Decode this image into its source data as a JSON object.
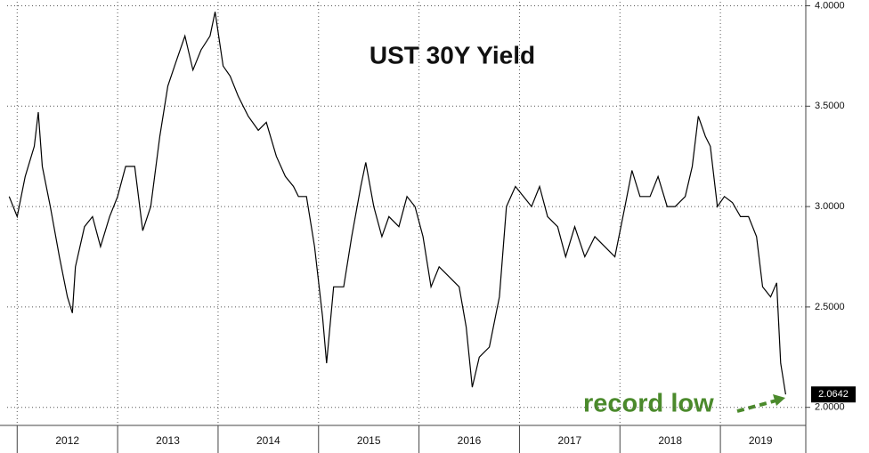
{
  "chart_data": {
    "type": "line",
    "title": "UST 30Y Yield",
    "annotation": "record low",
    "color": "#000000",
    "grid": true,
    "x": [
      2011.92,
      2012.0,
      2012.08,
      2012.17,
      2012.21,
      2012.25,
      2012.33,
      2012.42,
      2012.5,
      2012.55,
      2012.58,
      2012.67,
      2012.75,
      2012.83,
      2012.92,
      2013.0,
      2013.08,
      2013.17,
      2013.25,
      2013.33,
      2013.42,
      2013.5,
      2013.58,
      2013.67,
      2013.75,
      2013.83,
      2013.92,
      2013.97,
      2014.05,
      2014.12,
      2014.2,
      2014.3,
      2014.4,
      2014.48,
      2014.58,
      2014.67,
      2014.75,
      2014.8,
      2014.88,
      2014.96,
      2015.04,
      2015.08,
      2015.15,
      2015.25,
      2015.33,
      2015.42,
      2015.47,
      2015.55,
      2015.63,
      2015.7,
      2015.8,
      2015.88,
      2015.96,
      2016.04,
      2016.12,
      2016.2,
      2016.3,
      2016.4,
      2016.47,
      2016.53,
      2016.6,
      2016.7,
      2016.8,
      2016.87,
      2016.96,
      2017.04,
      2017.12,
      2017.2,
      2017.28,
      2017.38,
      2017.46,
      2017.55,
      2017.65,
      2017.75,
      2017.85,
      2017.95,
      2018.05,
      2018.12,
      2018.2,
      2018.3,
      2018.38,
      2018.47,
      2018.55,
      2018.65,
      2018.72,
      2018.78,
      2018.85,
      2018.9,
      2018.97,
      2019.04,
      2019.12,
      2019.2,
      2019.28,
      2019.36,
      2019.42,
      2019.5,
      2019.56,
      2019.6,
      2019.65
    ],
    "values": [
      3.05,
      2.95,
      3.15,
      3.3,
      3.47,
      3.2,
      3.0,
      2.75,
      2.55,
      2.47,
      2.7,
      2.9,
      2.95,
      2.8,
      2.95,
      3.05,
      3.2,
      3.2,
      2.88,
      3.0,
      3.35,
      3.6,
      3.72,
      3.85,
      3.68,
      3.78,
      3.85,
      3.97,
      3.7,
      3.65,
      3.55,
      3.45,
      3.38,
      3.42,
      3.25,
      3.15,
      3.1,
      3.05,
      3.05,
      2.8,
      2.45,
      2.22,
      2.6,
      2.6,
      2.85,
      3.1,
      3.22,
      3.0,
      2.85,
      2.95,
      2.9,
      3.05,
      3.0,
      2.85,
      2.6,
      2.7,
      2.65,
      2.6,
      2.4,
      2.1,
      2.25,
      2.3,
      2.55,
      3.0,
      3.1,
      3.05,
      3.0,
      3.1,
      2.95,
      2.9,
      2.75,
      2.9,
      2.75,
      2.85,
      2.8,
      2.75,
      3.0,
      3.18,
      3.05,
      3.05,
      3.15,
      3.0,
      3.0,
      3.05,
      3.2,
      3.45,
      3.35,
      3.3,
      3.0,
      3.05,
      3.02,
      2.95,
      2.95,
      2.85,
      2.6,
      2.55,
      2.62,
      2.22,
      2.0642
    ],
    "xlim": [
      2011.9,
      2019.85
    ],
    "xticks": [
      {
        "value": 2012.5,
        "label": "2012"
      },
      {
        "value": 2013.5,
        "label": "2013"
      },
      {
        "value": 2014.5,
        "label": "2014"
      },
      {
        "value": 2015.5,
        "label": "2015"
      },
      {
        "value": 2016.5,
        "label": "2016"
      },
      {
        "value": 2017.5,
        "label": "2017"
      },
      {
        "value": 2018.5,
        "label": "2018"
      },
      {
        "value": 2019.4,
        "label": "2019"
      }
    ],
    "ylim": [
      1.91,
      4.02
    ],
    "yticks": [
      {
        "value": 2.0,
        "label": "2.0000"
      },
      {
        "value": 2.5,
        "label": "2.5000"
      },
      {
        "value": 3.0,
        "label": "3.0000"
      },
      {
        "value": 3.5,
        "label": "3.5000"
      },
      {
        "value": 4.0,
        "label": "4.0000"
      }
    ]
  }
}
